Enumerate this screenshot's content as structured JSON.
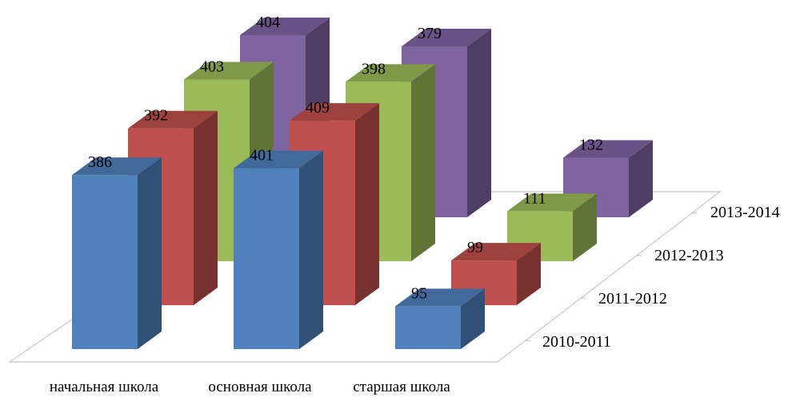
{
  "chart_data": {
    "type": "bar",
    "variant": "3d-column",
    "categories": [
      "начальная школа",
      "основная школа",
      "старшая школа"
    ],
    "series": [
      {
        "name": "2010-2011",
        "values": [
          386,
          401,
          95
        ],
        "color": "#4f81bd"
      },
      {
        "name": "2011-2012",
        "values": [
          392,
          409,
          99
        ],
        "color": "#c0504d"
      },
      {
        "name": "2012-2013",
        "values": [
          403,
          398,
          111
        ],
        "color": "#9bbb59"
      },
      {
        "name": "2013-2014",
        "values": [
          404,
          379,
          132
        ],
        "color": "#8064a2"
      }
    ],
    "title": "",
    "xlabel": "",
    "ylabel": "",
    "grid": false,
    "data_labels": true
  }
}
